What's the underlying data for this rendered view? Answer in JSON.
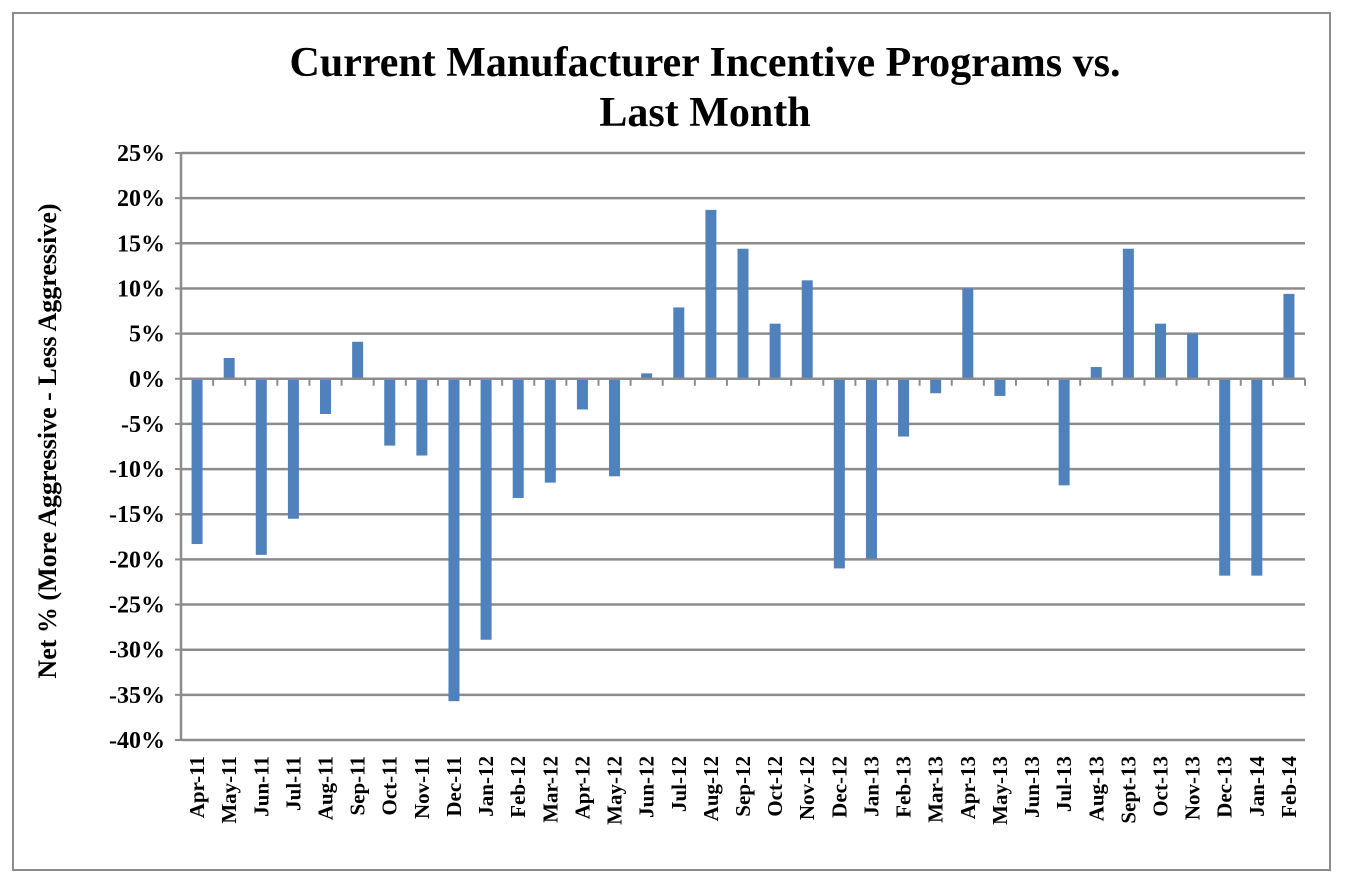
{
  "chart_data": {
    "type": "bar",
    "title_lines": [
      "Current Manufacturer Incentive Programs vs.",
      "Last Month"
    ],
    "xlabel": "",
    "ylabel": "Net % (More Aggressive - Less Aggressive)",
    "ylim": [
      -40,
      25
    ],
    "ytick_step": 5,
    "yticks": [
      "25%",
      "20%",
      "15%",
      "10%",
      "5%",
      "0%",
      "-5%",
      "-10%",
      "-15%",
      "-20%",
      "-25%",
      "-30%",
      "-35%",
      "-40%"
    ],
    "grid": true,
    "legend": "none",
    "bar_color": "#4f81bd",
    "categories": [
      "Apr-11",
      "May-11",
      "Jun-11",
      "Jul-11",
      "Aug-11",
      "Sep-11",
      "Oct-11",
      "Nov-11",
      "Dec-11",
      "Jan-12",
      "Feb-12",
      "Mar-12",
      "Apr-12",
      "May-12",
      "Jun-12",
      "Jul-12",
      "Aug-12",
      "Sep-12",
      "Oct-12",
      "Nov-12",
      "Dec-12",
      "Jan-13",
      "Feb-13",
      "Mar-13",
      "Apr-13",
      "May-13",
      "Jun-13",
      "Jul-13",
      "Aug-13",
      "Sept-13",
      "Oct-13",
      "Nov-13",
      "Dec-13",
      "Jan-14",
      "Feb-14"
    ],
    "values": [
      -18.3,
      2.3,
      -19.5,
      -15.5,
      -3.9,
      4.1,
      -7.4,
      -8.5,
      -35.7,
      -28.9,
      -13.2,
      -11.5,
      -3.4,
      -10.8,
      0.6,
      7.9,
      18.7,
      14.4,
      6.1,
      10.9,
      -21.0,
      -19.9,
      -6.4,
      -1.6,
      10.0,
      -1.9,
      0.0,
      -11.8,
      1.3,
      14.4,
      6.1,
      5.0,
      -21.8,
      -21.8,
      9.4
    ]
  }
}
